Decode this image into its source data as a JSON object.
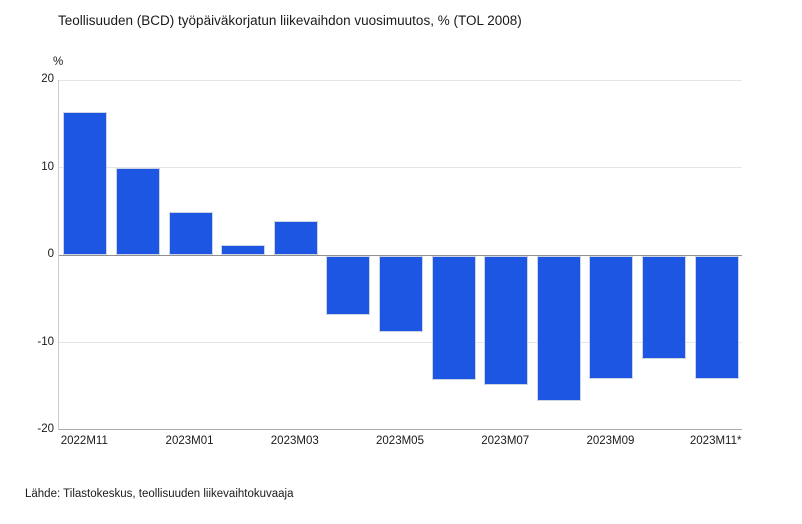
{
  "header": {
    "title": "Teollisuuden (BCD) työpäiväkorjatun liikevaihdon vuosimuutos, % (TOL 2008)"
  },
  "footer": {
    "source": "Lähde: Tilastokeskus, teollisuuden liikevaihtokuvaaja"
  },
  "chart_data": {
    "type": "bar",
    "title": "Teollisuuden (BCD) työpäiväkorjatun liikevaihdon vuosimuutos, % (TOL 2008)",
    "ylabel": "%",
    "xlabel": "",
    "categories": [
      "2022M11",
      "2022M12",
      "2023M01",
      "2023M02",
      "2023M03",
      "2023M04",
      "2023M05",
      "2023M06",
      "2023M07",
      "2023M08",
      "2023M09",
      "2023M10",
      "2023M11*"
    ],
    "values": [
      16.3,
      9.9,
      4.9,
      1.1,
      3.9,
      -6.7,
      -8.7,
      -14.2,
      -14.7,
      -16.6,
      -14.1,
      -11.8,
      -14.1
    ],
    "xtick_labels": [
      "2022M11",
      "2023M01",
      "2023M03",
      "2023M05",
      "2023M07",
      "2023M09",
      "2023M11*"
    ],
    "xtick_every": 2,
    "yticks": [
      20,
      10,
      0,
      -10,
      -20
    ],
    "ylim": [
      -20,
      20
    ],
    "grid": true,
    "legend": "none",
    "bar_color": "#1E56E4",
    "zero_line_color": "#8f8f8f",
    "gridline_color": "#e6e6e6"
  }
}
